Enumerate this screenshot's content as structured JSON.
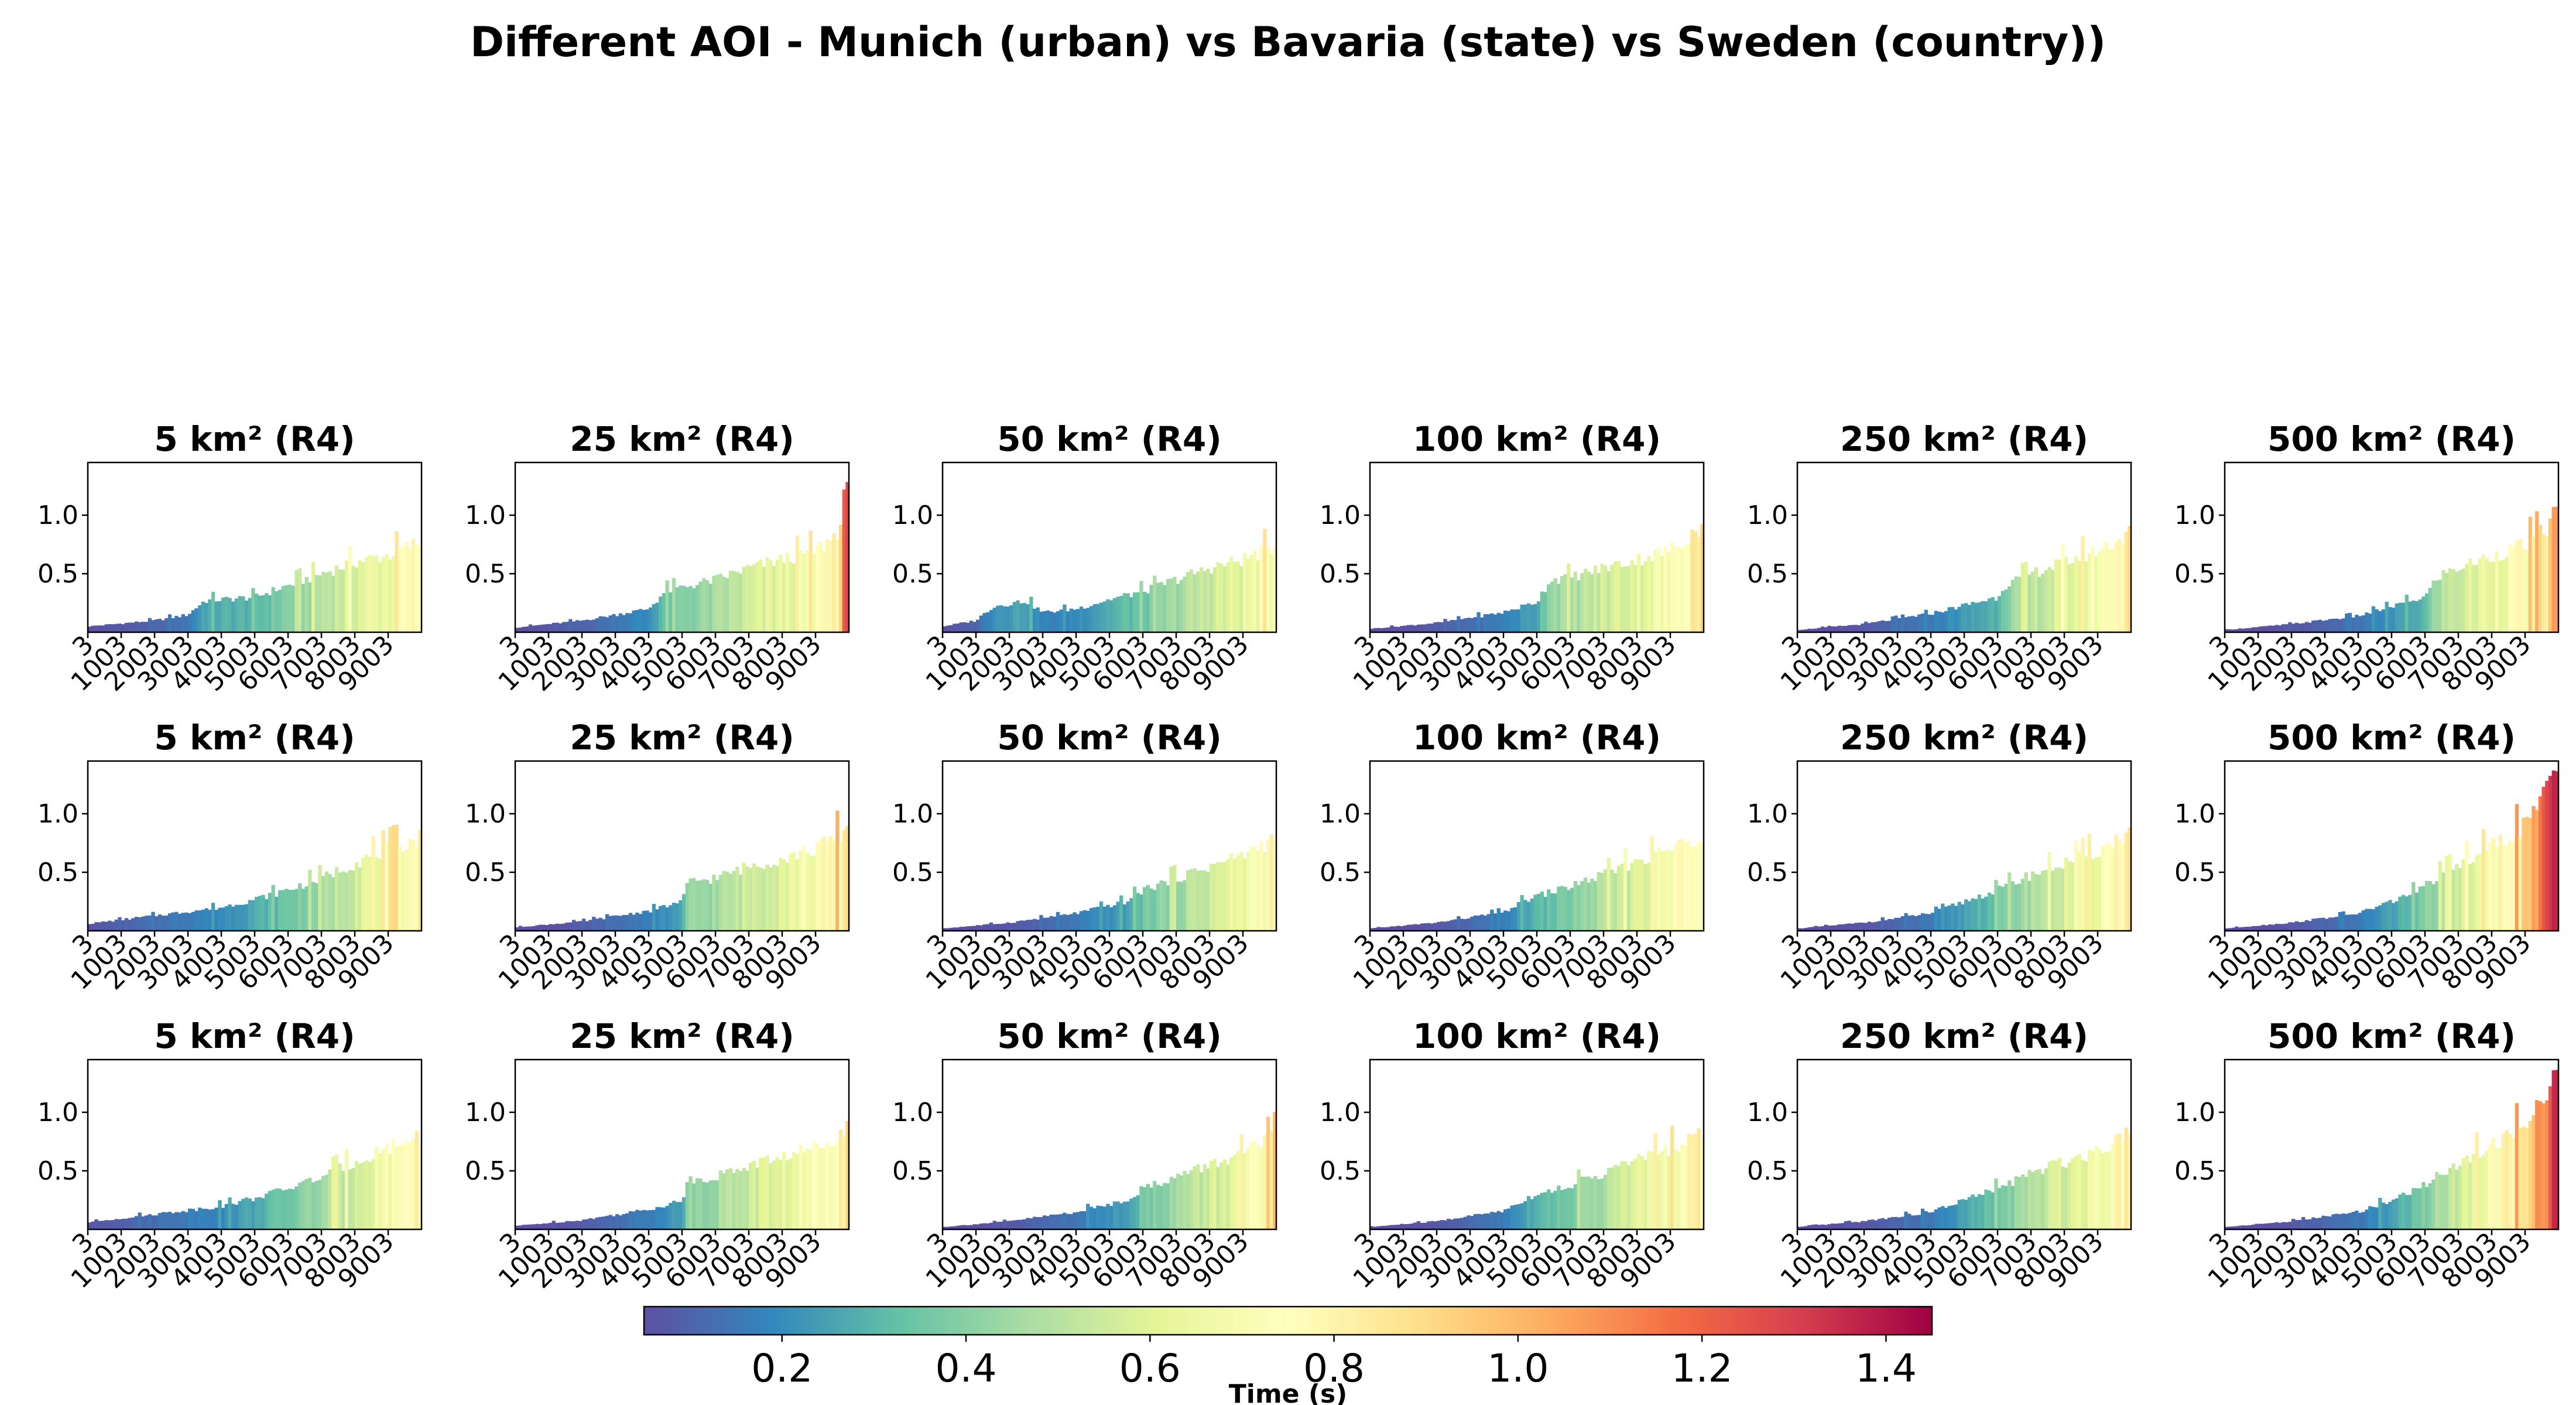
{
  "chart_data": {
    "type": "bar",
    "title": "Different AOI - Munich (urban) vs Bavaria (state) vs Sweden (country))",
    "x_tick_labels": [
      "3",
      "1003",
      "2003",
      "3003",
      "4003",
      "5003",
      "6003",
      "7003",
      "8003",
      "9003"
    ],
    "x_tick_values": [
      3,
      1003,
      2003,
      3003,
      4003,
      5003,
      6003,
      7003,
      8003,
      9003
    ],
    "x_range": [
      3,
      10003
    ],
    "y_tick_labels": [
      "0.5",
      "1.0"
    ],
    "y_tick_values": [
      0.5,
      1.0
    ],
    "ylim": [
      0,
      1.45
    ],
    "colormap": "Spectral_r",
    "colorbar": {
      "label": "Time (s)",
      "range": [
        0.05,
        1.45
      ],
      "tick_labels": [
        "0.2",
        "0.4",
        "0.6",
        "0.8",
        "1.0",
        "1.2",
        "1.4"
      ],
      "tick_values": [
        0.2,
        0.4,
        0.6,
        0.8,
        1.0,
        1.2,
        1.4
      ]
    },
    "panels": [
      {
        "title": "5 km² (R4)",
        "row": 0,
        "col": 0,
        "profile": [
          [
            3,
            0.05
          ],
          [
            2003,
            0.1
          ],
          [
            3003,
            0.15
          ],
          [
            3503,
            0.27
          ],
          [
            5003,
            0.3
          ],
          [
            6003,
            0.4
          ],
          [
            7003,
            0.5
          ],
          [
            8003,
            0.6
          ],
          [
            9003,
            0.66
          ],
          [
            10003,
            0.78
          ]
        ]
      },
      {
        "title": "25 km² (R4)",
        "row": 0,
        "col": 1,
        "profile": [
          [
            3,
            0.04
          ],
          [
            2003,
            0.1
          ],
          [
            4003,
            0.2
          ],
          [
            4503,
            0.35
          ],
          [
            6003,
            0.45
          ],
          [
            7003,
            0.55
          ],
          [
            8003,
            0.62
          ],
          [
            9003,
            0.7
          ],
          [
            9503,
            0.8
          ],
          [
            10003,
            1.05
          ]
        ]
      },
      {
        "title": "50 km² (R4)",
        "row": 0,
        "col": 2,
        "profile": [
          [
            3,
            0.05
          ],
          [
            1003,
            0.1
          ],
          [
            1503,
            0.22
          ],
          [
            2503,
            0.27
          ],
          [
            3003,
            0.17
          ],
          [
            4003,
            0.2
          ],
          [
            5003,
            0.28
          ],
          [
            6003,
            0.35
          ],
          [
            7003,
            0.45
          ],
          [
            8003,
            0.55
          ],
          [
            9003,
            0.62
          ],
          [
            10003,
            0.74
          ]
        ]
      },
      {
        "title": "100 km² (R4)",
        "row": 0,
        "col": 3,
        "profile": [
          [
            3,
            0.03
          ],
          [
            2003,
            0.08
          ],
          [
            4003,
            0.17
          ],
          [
            5003,
            0.26
          ],
          [
            5403,
            0.45
          ],
          [
            6003,
            0.47
          ],
          [
            7003,
            0.55
          ],
          [
            8003,
            0.62
          ],
          [
            9003,
            0.7
          ],
          [
            10003,
            0.92
          ]
        ]
      },
      {
        "title": "250 km² (R4)",
        "row": 0,
        "col": 4,
        "profile": [
          [
            3,
            0.02
          ],
          [
            2003,
            0.07
          ],
          [
            4003,
            0.16
          ],
          [
            6003,
            0.3
          ],
          [
            6203,
            0.4
          ],
          [
            7003,
            0.5
          ],
          [
            8003,
            0.6
          ],
          [
            9003,
            0.7
          ],
          [
            10003,
            0.85
          ]
        ]
      },
      {
        "title": "500 km² (R4)",
        "row": 0,
        "col": 5,
        "profile": [
          [
            3,
            0.02
          ],
          [
            2003,
            0.07
          ],
          [
            4003,
            0.14
          ],
          [
            6003,
            0.3
          ],
          [
            6403,
            0.48
          ],
          [
            7003,
            0.55
          ],
          [
            8003,
            0.65
          ],
          [
            9003,
            0.75
          ],
          [
            9703,
            0.9
          ],
          [
            10003,
            1.1
          ]
        ]
      },
      {
        "title": "5 km² (R4)",
        "row": 1,
        "col": 0,
        "profile": [
          [
            3,
            0.06
          ],
          [
            2003,
            0.13
          ],
          [
            4003,
            0.2
          ],
          [
            5003,
            0.27
          ],
          [
            6003,
            0.35
          ],
          [
            7003,
            0.45
          ],
          [
            8003,
            0.58
          ],
          [
            9003,
            0.7
          ],
          [
            10003,
            0.8
          ]
        ]
      },
      {
        "title": "25 km² (R4)",
        "row": 1,
        "col": 1,
        "profile": [
          [
            3,
            0.03
          ],
          [
            2003,
            0.08
          ],
          [
            4003,
            0.17
          ],
          [
            5003,
            0.25
          ],
          [
            5203,
            0.42
          ],
          [
            6003,
            0.45
          ],
          [
            7003,
            0.55
          ],
          [
            8003,
            0.62
          ],
          [
            9003,
            0.7
          ],
          [
            10003,
            0.88
          ]
        ]
      },
      {
        "title": "50 km² (R4)",
        "row": 1,
        "col": 2,
        "profile": [
          [
            3,
            0.02
          ],
          [
            2003,
            0.07
          ],
          [
            4003,
            0.15
          ],
          [
            5503,
            0.25
          ],
          [
            6003,
            0.35
          ],
          [
            7003,
            0.45
          ],
          [
            8003,
            0.55
          ],
          [
            9003,
            0.65
          ],
          [
            10003,
            0.8
          ]
        ]
      },
      {
        "title": "100 km² (R4)",
        "row": 1,
        "col": 3,
        "profile": [
          [
            3,
            0.02
          ],
          [
            2003,
            0.07
          ],
          [
            4003,
            0.16
          ],
          [
            4803,
            0.28
          ],
          [
            6003,
            0.38
          ],
          [
            7003,
            0.48
          ],
          [
            8003,
            0.6
          ],
          [
            9003,
            0.7
          ],
          [
            10003,
            0.82
          ]
        ]
      },
      {
        "title": "250 km² (R4)",
        "row": 1,
        "col": 4,
        "profile": [
          [
            3,
            0.02
          ],
          [
            2003,
            0.07
          ],
          [
            4003,
            0.15
          ],
          [
            5003,
            0.25
          ],
          [
            6003,
            0.35
          ],
          [
            7003,
            0.48
          ],
          [
            8003,
            0.58
          ],
          [
            9003,
            0.68
          ],
          [
            10003,
            0.85
          ]
        ]
      },
      {
        "title": "500 km² (R4)",
        "row": 1,
        "col": 5,
        "profile": [
          [
            3,
            0.02
          ],
          [
            2003,
            0.07
          ],
          [
            4003,
            0.15
          ],
          [
            5003,
            0.25
          ],
          [
            5803,
            0.35
          ],
          [
            6603,
            0.5
          ],
          [
            7503,
            0.65
          ],
          [
            8503,
            0.8
          ],
          [
            9303,
            1.0
          ],
          [
            9803,
            1.3
          ],
          [
            10003,
            1.45
          ]
        ]
      },
      {
        "title": "5 km² (R4)",
        "row": 2,
        "col": 0,
        "profile": [
          [
            3,
            0.06
          ],
          [
            2003,
            0.13
          ],
          [
            4003,
            0.2
          ],
          [
            5003,
            0.27
          ],
          [
            6003,
            0.35
          ],
          [
            7003,
            0.45
          ],
          [
            8003,
            0.58
          ],
          [
            9003,
            0.7
          ],
          [
            10003,
            0.8
          ]
        ]
      },
      {
        "title": "25 km² (R4)",
        "row": 2,
        "col": 1,
        "profile": [
          [
            3,
            0.03
          ],
          [
            2003,
            0.08
          ],
          [
            4003,
            0.17
          ],
          [
            5003,
            0.25
          ],
          [
            5203,
            0.42
          ],
          [
            6003,
            0.45
          ],
          [
            7003,
            0.55
          ],
          [
            8003,
            0.62
          ],
          [
            9003,
            0.7
          ],
          [
            10003,
            0.88
          ]
        ]
      },
      {
        "title": "50 km² (R4)",
        "row": 2,
        "col": 2,
        "profile": [
          [
            3,
            0.02
          ],
          [
            2003,
            0.07
          ],
          [
            4003,
            0.15
          ],
          [
            5503,
            0.25
          ],
          [
            6003,
            0.35
          ],
          [
            7003,
            0.45
          ],
          [
            8003,
            0.55
          ],
          [
            9003,
            0.65
          ],
          [
            10003,
            0.8
          ]
        ]
      },
      {
        "title": "100 km² (R4)",
        "row": 2,
        "col": 3,
        "profile": [
          [
            3,
            0.02
          ],
          [
            2003,
            0.07
          ],
          [
            4003,
            0.16
          ],
          [
            4803,
            0.28
          ],
          [
            6003,
            0.38
          ],
          [
            7003,
            0.48
          ],
          [
            8003,
            0.6
          ],
          [
            9003,
            0.7
          ],
          [
            10003,
            0.82
          ]
        ]
      },
      {
        "title": "250 km² (R4)",
        "row": 2,
        "col": 4,
        "profile": [
          [
            3,
            0.02
          ],
          [
            2003,
            0.07
          ],
          [
            4003,
            0.15
          ],
          [
            5003,
            0.25
          ],
          [
            6003,
            0.35
          ],
          [
            7003,
            0.48
          ],
          [
            8003,
            0.58
          ],
          [
            9003,
            0.68
          ],
          [
            10003,
            0.85
          ]
        ]
      },
      {
        "title": "500 km² (R4)",
        "row": 2,
        "col": 5,
        "profile": [
          [
            3,
            0.02
          ],
          [
            2003,
            0.07
          ],
          [
            4003,
            0.15
          ],
          [
            5003,
            0.25
          ],
          [
            5803,
            0.35
          ],
          [
            6603,
            0.5
          ],
          [
            7503,
            0.65
          ],
          [
            8503,
            0.8
          ],
          [
            9303,
            1.0
          ],
          [
            9803,
            1.3
          ],
          [
            10003,
            1.45
          ]
        ]
      }
    ]
  }
}
